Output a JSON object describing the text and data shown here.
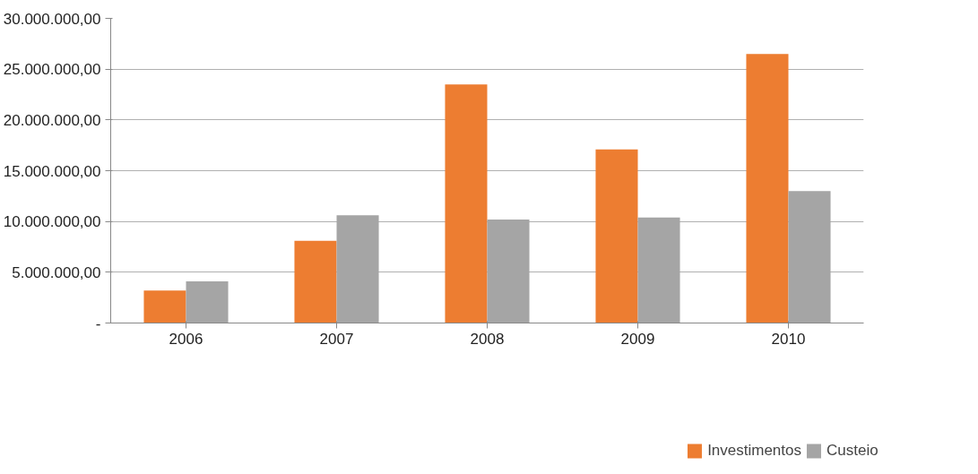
{
  "chart_data": {
    "type": "bar",
    "categories": [
      "2006",
      "2007",
      "2008",
      "2009",
      "2010"
    ],
    "series": [
      {
        "name": "Investimentos",
        "color": "#ed7d31",
        "values": [
          3200000,
          8100000,
          23500000,
          17100000,
          26500000
        ]
      },
      {
        "name": "Custeio",
        "color": "#a5a5a5",
        "values": [
          4100000,
          10600000,
          10200000,
          10400000,
          13000000
        ]
      }
    ],
    "ylim": [
      0,
      30000000
    ],
    "yticks": [
      {
        "value": 0,
        "label": "-"
      },
      {
        "value": 5000000,
        "label": "5.000.000,00"
      },
      {
        "value": 10000000,
        "label": "10.000.000,00"
      },
      {
        "value": 15000000,
        "label": "15.000.000,00"
      },
      {
        "value": 20000000,
        "label": "20.000.000,00"
      },
      {
        "value": 25000000,
        "label": "25.000.000,00"
      },
      {
        "value": 30000000,
        "label": "30.000.000,00"
      }
    ],
    "grid": "y",
    "legend": "bottom"
  }
}
